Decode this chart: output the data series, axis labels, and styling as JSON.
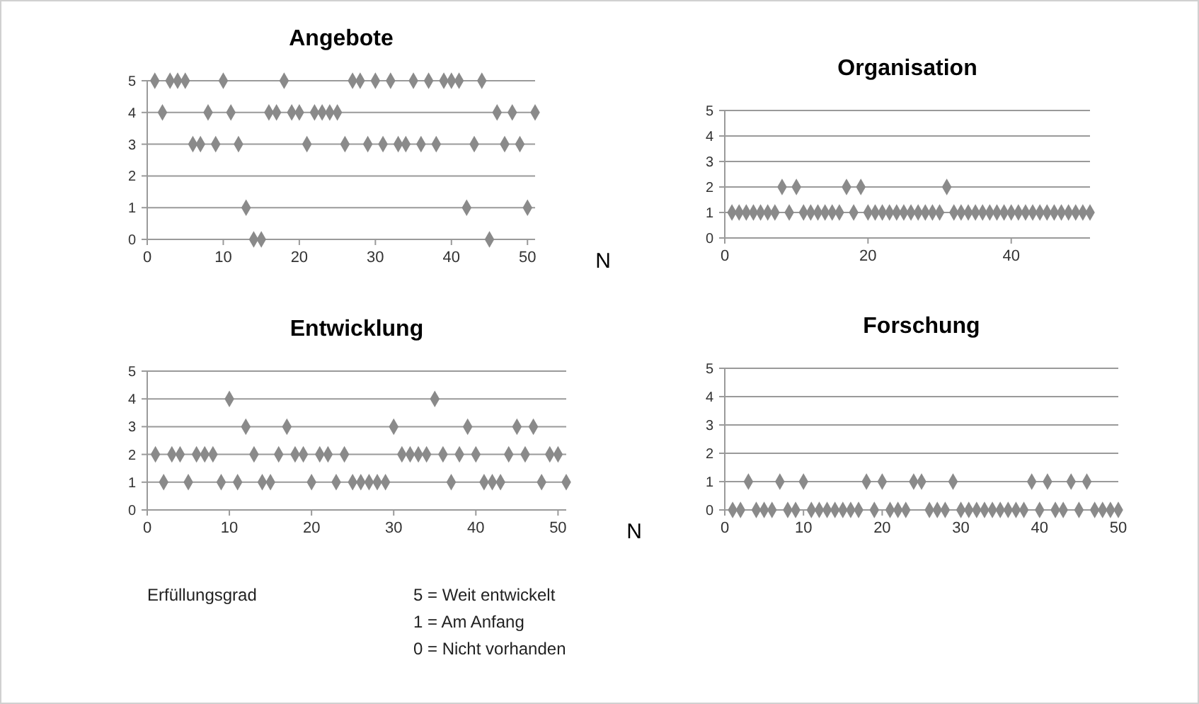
{
  "chart_data": [
    {
      "type": "scatter",
      "title": "Angebote",
      "xlabel": "N",
      "xlim": [
        0,
        51
      ],
      "xticks": [
        0,
        10,
        20,
        30,
        40,
        50
      ],
      "ylim": [
        0,
        5
      ],
      "yticks": [
        0,
        1,
        2,
        3,
        4,
        5
      ],
      "grid": "y",
      "marker": "diamond",
      "series": [
        {
          "color": "#8a8a8a",
          "x": [
            1,
            2,
            3,
            4,
            5,
            6,
            7,
            8,
            9,
            10,
            11,
            12,
            13,
            14,
            15,
            16,
            17,
            18,
            19,
            20,
            21,
            22,
            23,
            24,
            25,
            26,
            27,
            28,
            29,
            30,
            31,
            32,
            33,
            34,
            35,
            36,
            37,
            38,
            39,
            40,
            41,
            42,
            43,
            44,
            45,
            46,
            47,
            48,
            49,
            50,
            51
          ],
          "values": [
            5,
            4,
            5,
            5,
            5,
            3,
            3,
            4,
            3,
            5,
            4,
            3,
            1,
            0,
            0,
            4,
            4,
            5,
            4,
            4,
            3,
            4,
            4,
            4,
            4,
            3,
            5,
            5,
            3,
            5,
            3,
            5,
            3,
            3,
            5,
            3,
            5,
            3,
            5,
            5,
            5,
            1,
            3,
            5,
            0,
            4,
            3,
            4,
            3,
            1,
            4
          ]
        }
      ]
    },
    {
      "type": "scatter",
      "title": "Organisation",
      "xlim": [
        0,
        51
      ],
      "xticks": [
        0,
        20,
        40
      ],
      "ylim": [
        0,
        5
      ],
      "yticks": [
        0,
        1,
        2,
        3,
        4,
        5
      ],
      "grid": "y",
      "marker": "diamond",
      "series": [
        {
          "color": "#8a8a8a",
          "x": [
            1,
            2,
            3,
            4,
            5,
            6,
            7,
            8,
            9,
            10,
            11,
            12,
            13,
            14,
            15,
            16,
            17,
            18,
            19,
            20,
            21,
            22,
            23,
            24,
            25,
            26,
            27,
            28,
            29,
            30,
            31,
            32,
            33,
            34,
            35,
            36,
            37,
            38,
            39,
            40,
            41,
            42,
            43,
            44,
            45,
            46,
            47,
            48,
            49,
            50,
            51
          ],
          "values": [
            1,
            1,
            1,
            1,
            1,
            1,
            1,
            2,
            1,
            2,
            1,
            1,
            1,
            1,
            1,
            1,
            2,
            1,
            2,
            1,
            1,
            1,
            1,
            1,
            1,
            1,
            1,
            1,
            1,
            1,
            2,
            1,
            1,
            1,
            1,
            1,
            1,
            1,
            1,
            1,
            1,
            1,
            1,
            1,
            1,
            1,
            1,
            1,
            1,
            1,
            1
          ]
        }
      ]
    },
    {
      "type": "scatter",
      "title": "Entwicklung",
      "xlabel": "N",
      "xlim": [
        0,
        51
      ],
      "xticks": [
        0,
        10,
        20,
        30,
        40,
        50
      ],
      "ylim": [
        0,
        5
      ],
      "yticks": [
        0,
        1,
        2,
        3,
        4,
        5
      ],
      "grid": "y",
      "marker": "diamond",
      "series": [
        {
          "color": "#8a8a8a",
          "x": [
            1,
            2,
            3,
            4,
            5,
            6,
            7,
            8,
            9,
            10,
            11,
            12,
            13,
            14,
            15,
            16,
            17,
            18,
            19,
            20,
            21,
            22,
            23,
            24,
            25,
            26,
            27,
            28,
            29,
            30,
            31,
            32,
            33,
            34,
            35,
            36,
            37,
            38,
            39,
            40,
            41,
            42,
            43,
            44,
            45,
            46,
            47,
            48,
            49,
            50,
            51
          ],
          "values": [
            2,
            1,
            2,
            2,
            1,
            2,
            2,
            2,
            1,
            4,
            1,
            3,
            2,
            1,
            1,
            2,
            3,
            2,
            2,
            1,
            2,
            2,
            1,
            2,
            1,
            1,
            1,
            1,
            1,
            3,
            2,
            2,
            2,
            2,
            4,
            2,
            1,
            2,
            3,
            2,
            1,
            1,
            1,
            2,
            3,
            2,
            3,
            1,
            2,
            2,
            1
          ]
        }
      ]
    },
    {
      "type": "scatter",
      "title": "Forschung",
      "xlim": [
        0,
        50
      ],
      "xticks": [
        0,
        10,
        20,
        30,
        40,
        50
      ],
      "ylim": [
        0,
        5
      ],
      "yticks": [
        0,
        1,
        2,
        3,
        4,
        5
      ],
      "grid": "y",
      "marker": "diamond",
      "series": [
        {
          "color": "#8a8a8a",
          "x": [
            1,
            2,
            3,
            4,
            5,
            6,
            7,
            8,
            9,
            10,
            11,
            12,
            13,
            14,
            15,
            16,
            17,
            18,
            19,
            20,
            21,
            22,
            23,
            24,
            25,
            26,
            27,
            28,
            29,
            30,
            31,
            32,
            33,
            34,
            35,
            36,
            37,
            38,
            39,
            40,
            41,
            42,
            43,
            44,
            45,
            46,
            47,
            48,
            49,
            50
          ],
          "values": [
            0,
            0,
            1,
            0,
            0,
            0,
            1,
            0,
            0,
            1,
            0,
            0,
            0,
            0,
            0,
            0,
            0,
            1,
            0,
            1,
            0,
            0,
            0,
            1,
            1,
            0,
            0,
            0,
            1,
            0,
            0,
            0,
            0,
            0,
            0,
            0,
            0,
            0,
            1,
            0,
            1,
            0,
            0,
            1,
            0,
            1,
            0,
            0,
            0,
            0
          ]
        }
      ]
    },
    {
      "type": "other",
      "annotations": [
        "Erfüllungsgrad",
        "5 = Weit entwickelt",
        "1 = Am Anfang",
        "0 = Nicht vorhanden"
      ]
    }
  ]
}
